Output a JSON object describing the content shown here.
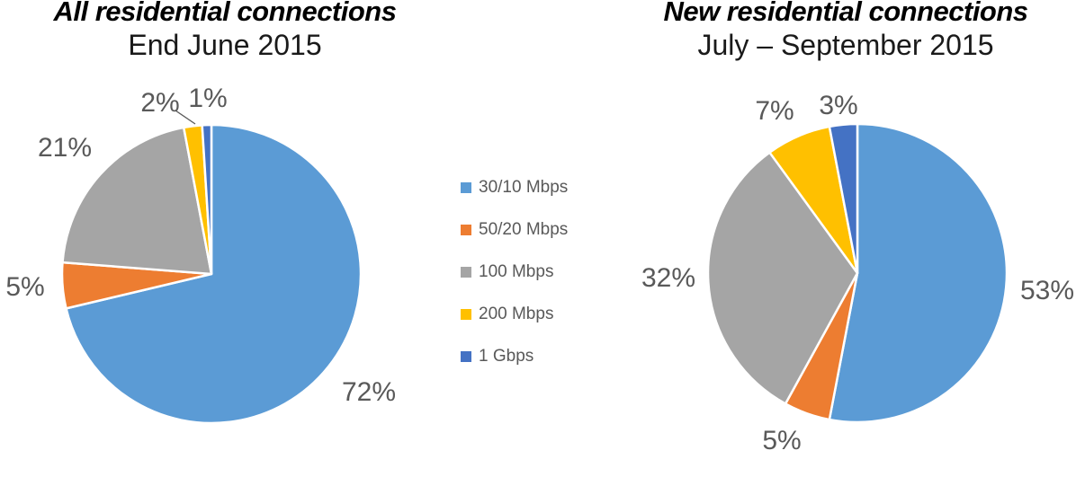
{
  "chart_data": [
    {
      "type": "pie",
      "title": "All residential connections",
      "subtitle": "End June 2015",
      "categories": [
        "30/10 Mbps",
        "50/20 Mbps",
        "100 Mbps",
        "200 Mbps",
        "1 Gbps"
      ],
      "values": [
        72,
        5,
        21,
        2,
        1
      ],
      "display_labels": [
        "72%",
        "5%",
        "21%",
        "2%",
        "1%"
      ],
      "colors": [
        "#5B9BD5",
        "#ED7D31",
        "#A5A5A5",
        "#FFC000",
        "#4472C4"
      ],
      "start_angle_deg": 0,
      "direction": "clockwise",
      "label_position": "outside"
    },
    {
      "type": "pie",
      "title": "New residential connections",
      "subtitle": "July – September 2015",
      "categories": [
        "30/10 Mbps",
        "50/20 Mbps",
        "100 Mbps",
        "200 Mbps",
        "1 Gbps"
      ],
      "values": [
        53,
        5,
        32,
        7,
        3
      ],
      "display_labels": [
        "53%",
        "5%",
        "32%",
        "7%",
        "3%"
      ],
      "colors": [
        "#5B9BD5",
        "#ED7D31",
        "#A5A5A5",
        "#FFC000",
        "#4472C4"
      ],
      "start_angle_deg": 0,
      "direction": "clockwise",
      "label_position": "outside"
    }
  ],
  "legend": {
    "position": "center-between-charts",
    "items": [
      {
        "label": "30/10 Mbps",
        "color": "#5B9BD5"
      },
      {
        "label": "50/20 Mbps",
        "color": "#ED7D31"
      },
      {
        "label": "100 Mbps",
        "color": "#A5A5A5"
      },
      {
        "label": "200 Mbps",
        "color": "#FFC000"
      },
      {
        "label": "1 Gbps",
        "color": "#4472C4"
      }
    ]
  },
  "styles": {
    "label_color": "#595959",
    "legend_text_color": "#595959",
    "title_color": "#000000",
    "slice_border_color": "#ffffff",
    "leader_line_color": "#595959",
    "background": "#ffffff"
  }
}
